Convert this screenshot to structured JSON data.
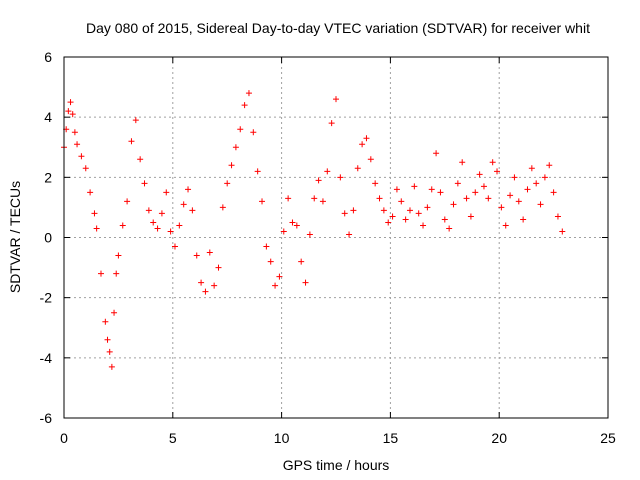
{
  "chart_data": {
    "type": "scatter",
    "title": "Day 080 of 2015, Sidereal Day-to-day VTEC variation (SDTVAR) for receiver whit",
    "xlabel": "GPS time / hours",
    "ylabel": "SDTVAR / TECUs",
    "xlim": [
      0,
      25
    ],
    "ylim": [
      -6,
      6
    ],
    "xticks": [
      0,
      5,
      10,
      15,
      20,
      25
    ],
    "yticks": [
      -6,
      -4,
      -2,
      0,
      2,
      4,
      6
    ],
    "grid": true,
    "marker": "+",
    "series": [
      {
        "name": "SDTVAR",
        "color": "#ff0000",
        "x": [
          0.0,
          0.1,
          0.2,
          0.3,
          0.4,
          0.5,
          0.6,
          0.8,
          1.0,
          1.2,
          1.4,
          1.5,
          1.7,
          1.9,
          2.0,
          2.1,
          2.2,
          2.3,
          2.4,
          2.5,
          2.7,
          2.9,
          3.1,
          3.3,
          3.5,
          3.7,
          3.9,
          4.1,
          4.3,
          4.5,
          4.7,
          4.9,
          5.1,
          5.3,
          5.5,
          5.7,
          5.9,
          6.1,
          6.3,
          6.5,
          6.7,
          6.9,
          7.1,
          7.3,
          7.5,
          7.7,
          7.9,
          8.1,
          8.3,
          8.5,
          8.7,
          8.9,
          9.1,
          9.3,
          9.5,
          9.7,
          9.9,
          10.1,
          10.3,
          10.5,
          10.7,
          10.9,
          11.1,
          11.3,
          11.5,
          11.7,
          11.9,
          12.1,
          12.3,
          12.5,
          12.7,
          12.9,
          13.1,
          13.3,
          13.5,
          13.7,
          13.9,
          14.1,
          14.3,
          14.5,
          14.7,
          14.9,
          15.1,
          15.3,
          15.5,
          15.7,
          15.9,
          16.1,
          16.3,
          16.5,
          16.7,
          16.9,
          17.1,
          17.3,
          17.5,
          17.7,
          17.9,
          18.1,
          18.3,
          18.5,
          18.7,
          18.9,
          19.1,
          19.3,
          19.5,
          19.7,
          19.9,
          20.1,
          20.3,
          20.5,
          20.7,
          20.9,
          21.1,
          21.3,
          21.5,
          21.7,
          21.9,
          22.1,
          22.3,
          22.5,
          22.7,
          22.9
        ],
        "y": [
          3.0,
          3.6,
          4.2,
          4.5,
          4.1,
          3.5,
          3.1,
          2.7,
          2.3,
          1.5,
          0.8,
          0.3,
          -1.2,
          -2.8,
          -3.4,
          -3.8,
          -4.3,
          -2.5,
          -1.2,
          -0.6,
          0.4,
          1.2,
          3.2,
          3.9,
          2.6,
          1.8,
          0.9,
          0.5,
          0.3,
          0.8,
          1.5,
          0.2,
          -0.3,
          0.4,
          1.1,
          1.6,
          0.9,
          -0.6,
          -1.5,
          -1.8,
          -0.5,
          -1.6,
          -1.0,
          1.0,
          1.8,
          2.4,
          3.0,
          3.6,
          4.4,
          4.8,
          3.5,
          2.2,
          1.2,
          -0.3,
          -0.8,
          -1.6,
          -1.3,
          0.2,
          1.3,
          0.5,
          0.4,
          -0.8,
          -1.5,
          0.1,
          1.3,
          1.9,
          1.2,
          2.2,
          3.8,
          4.6,
          2.0,
          0.8,
          0.1,
          0.9,
          2.3,
          3.1,
          3.3,
          2.6,
          1.8,
          1.3,
          0.9,
          0.5,
          0.7,
          1.6,
          1.2,
          0.6,
          0.9,
          1.7,
          0.8,
          0.4,
          1.0,
          1.6,
          2.8,
          1.5,
          0.6,
          0.3,
          1.1,
          1.8,
          2.5,
          1.3,
          0.7,
          1.5,
          2.1,
          1.7,
          1.3,
          2.5,
          2.2,
          1.0,
          0.4,
          1.4,
          2.0,
          1.2,
          0.6,
          1.6,
          2.3,
          1.8,
          1.1,
          2.0,
          2.4,
          1.5,
          0.7,
          0.2
        ]
      }
    ]
  }
}
